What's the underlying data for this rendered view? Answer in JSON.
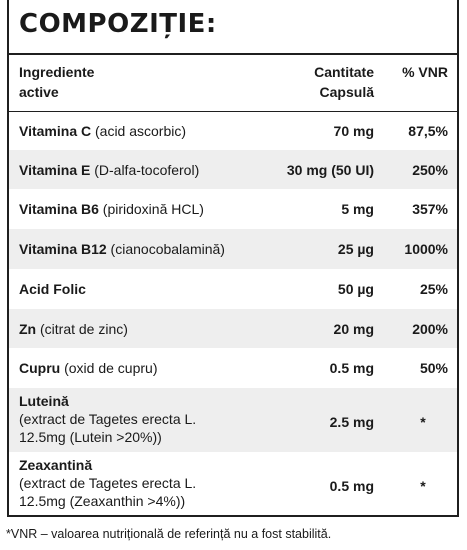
{
  "title": "COMPOZIȚIE:",
  "headers": {
    "ingredient": [
      "Ingrediente",
      "active"
    ],
    "quantity": [
      "Cantitate",
      "Capsulă"
    ],
    "vnr": "% VNR"
  },
  "rows": [
    {
      "name": "Vitamina C",
      "detail": " (acid ascorbic)",
      "quantity": "70 mg",
      "vnr": "87,5%"
    },
    {
      "name": "Vitamina E",
      "detail": " (D-alfa-tocoferol)",
      "quantity": "30 mg (50 UI)",
      "vnr": "250%"
    },
    {
      "name": "Vitamina B6",
      "detail": " (piridoxină HCL)",
      "quantity": "5 mg",
      "vnr": "357%"
    },
    {
      "name": "Vitamina B12",
      "detail": " (cianocobalamină)",
      "quantity": "25 µg",
      "vnr": "1000%"
    },
    {
      "name": "Acid Folic",
      "detail": "",
      "quantity": "50 µg",
      "vnr": "25%"
    },
    {
      "name": "Zn",
      "detail": " (citrat de zinc)",
      "quantity": "20 mg",
      "vnr": "200%"
    },
    {
      "name": "Cupru",
      "detail": " (oxid de cupru)",
      "quantity": "0.5 mg",
      "vnr": "50%"
    },
    {
      "name": "Luteină",
      "detail_lines": [
        "(extract de Tagetes erecta L.",
        "12.5mg (Lutein >20%))"
      ],
      "quantity": "2.5 mg",
      "vnr": "*"
    },
    {
      "name": "Zeaxantină",
      "detail_lines": [
        "(extract de Tagetes erecta L.",
        "12.5mg (Zeaxanthin >4%))"
      ],
      "quantity": "0.5 mg",
      "vnr": "*"
    }
  ],
  "footnote": "*VNR – valoarea nutrițională de referință nu a fost stabilită."
}
